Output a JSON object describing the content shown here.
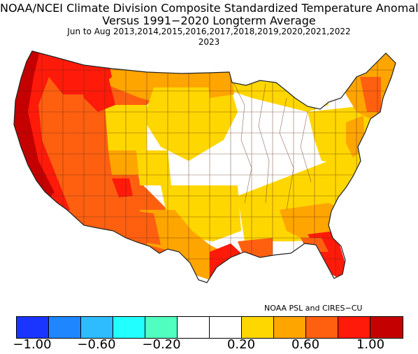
{
  "title_line1": "NOAA/NCEI Climate Division Composite Standardized Temperature Anomalies",
  "title_line2": "Versus 1991−2020 Longterm Average",
  "title_line3": "Jun to Aug   2013,2014,2015,2016,2017,2018,2019,2020,2021,2022",
  "title_line4": "2023",
  "credit": "NOAA PSL and CIRES−CU",
  "legend": {
    "colors": [
      "#1a35ff",
      "#1e87ff",
      "#2ebcff",
      "#22ffff",
      "#50ffc0",
      "#ffffff",
      "#ffffff",
      "#ffd700",
      "#ffa500",
      "#ff6010",
      "#ff1a0a",
      "#c40000"
    ],
    "tick_labels": [
      "−1.00",
      "−0.60",
      "−0.20",
      "0.20",
      "0.60",
      "1.00"
    ]
  },
  "map_regions": [
    {
      "name": "pacific-northwest-coast",
      "level": 1.1
    },
    {
      "name": "california",
      "level": 1.0
    },
    {
      "name": "great-basin",
      "level": 0.85
    },
    {
      "name": "southwest",
      "level": 0.7
    },
    {
      "name": "northern-rockies",
      "level": 0.55
    },
    {
      "name": "northern-plains",
      "level": 0.3
    },
    {
      "name": "central-plains",
      "level": 0.1
    },
    {
      "name": "texas-gulf-coast",
      "level": 0.95
    },
    {
      "name": "florida",
      "level": 0.9
    },
    {
      "name": "southeast",
      "level": 0.35
    },
    {
      "name": "new-england",
      "level": 0.6
    },
    {
      "name": "ohio-valley-midwest",
      "level": 0.05
    }
  ]
}
